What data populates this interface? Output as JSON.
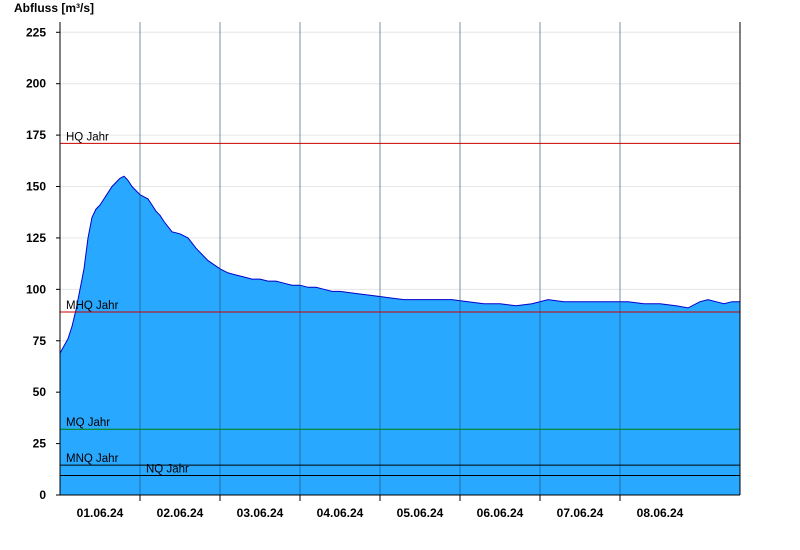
{
  "chart_data": {
    "type": "area",
    "ylabel": "Abfluss [m³/s]",
    "ylim": [
      0,
      230
    ],
    "y_ticks": [
      "0",
      "25",
      "50",
      "75",
      "100",
      "125",
      "150",
      "175",
      "200",
      "225"
    ],
    "x_ticks": [
      "01.06.24",
      "02.06.24",
      "03.06.24",
      "04.06.24",
      "05.06.24",
      "06.06.24",
      "07.06.24",
      "08.06.24"
    ],
    "x_range_days": [
      -0.5,
      8.0
    ],
    "series": [
      {
        "x_days": [
          -0.5,
          -0.4,
          -0.35,
          -0.3,
          -0.25,
          -0.2,
          -0.15,
          -0.1,
          -0.05,
          0.0,
          0.05,
          0.1,
          0.15,
          0.2,
          0.25,
          0.3,
          0.35,
          0.4,
          0.45,
          0.5,
          0.55,
          0.6,
          0.65,
          0.7,
          0.75,
          0.8,
          0.9,
          1.0,
          1.1,
          1.2,
          1.35,
          1.5,
          1.6,
          1.7,
          1.8,
          1.9,
          2.0,
          2.1,
          2.2,
          2.3,
          2.4,
          2.5,
          2.6,
          2.7,
          2.8,
          2.9,
          3.0,
          3.2,
          3.4,
          3.6,
          3.8,
          4.0,
          4.2,
          4.4,
          4.6,
          4.8,
          5.0,
          5.2,
          5.4,
          5.6,
          5.8,
          6.0,
          6.2,
          6.4,
          6.6,
          6.8,
          7.0,
          7.2,
          7.35,
          7.5,
          7.6,
          7.7,
          7.8,
          7.9,
          8.0
        ],
        "values": [
          69,
          76,
          82,
          90,
          100,
          110,
          125,
          135,
          139,
          141,
          144,
          147,
          150,
          152,
          154,
          155,
          153,
          150,
          148,
          146,
          145,
          144,
          141,
          138,
          136,
          133,
          128,
          127,
          125,
          120,
          114,
          110,
          108,
          107,
          106,
          105,
          105,
          104,
          104,
          103,
          102,
          102,
          101,
          101,
          100,
          99,
          99,
          98,
          97,
          96,
          95,
          95,
          95,
          95,
          94,
          93,
          93,
          92,
          93,
          95,
          94,
          94,
          94,
          94,
          94,
          93,
          93,
          92,
          91,
          94,
          95,
          94,
          93,
          94,
          94
        ]
      }
    ],
    "reference_lines": [
      {
        "label": "HQ Jahr",
        "value": 171,
        "color": "#cc0000"
      },
      {
        "label": "MHQ Jahr",
        "value": 89,
        "color": "#cc0000"
      },
      {
        "label": "MQ Jahr",
        "value": 32,
        "color": "#008000"
      },
      {
        "label": "MNQ Jahr",
        "value": 14.5,
        "color": "#000000"
      },
      {
        "label": "NQ Jahr",
        "value": 9.5,
        "color": "#000000"
      }
    ],
    "fill_color": "#29a8ff",
    "line_color": "#0000cc",
    "grid": true
  }
}
